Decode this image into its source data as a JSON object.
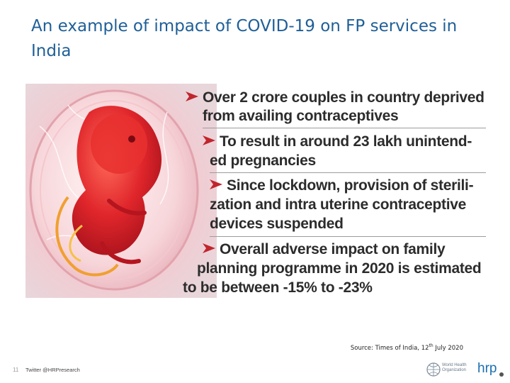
{
  "title": "An example of impact of COVID-19 on FP services in India",
  "figure": {
    "points": [
      {
        "line1": "Over 2 crore couples in country deprived",
        "line2": "from availing contraceptives"
      },
      {
        "line1": "To result in around 23 lakh unintend-",
        "line2": "ed pregnancies"
      },
      {
        "line1": "Since lockdown, provision of sterili-",
        "line2": "zation and intra uterine contraceptive",
        "line3": "devices suspended"
      },
      {
        "line1": "Overall adverse impact on family",
        "line2": "planning programme in 2020 is estimated",
        "line3": "to be between -15% to -23%"
      }
    ]
  },
  "source": {
    "prefix": "Source: Times of India, 12",
    "sup": "th",
    "suffix": " July 2020"
  },
  "footer": {
    "page_number": "11",
    "twitter": "Twitter @HRPresearch",
    "who_line1": "World Health",
    "who_line2": "Organization",
    "hrp": "hrp"
  },
  "colors": {
    "title": "#1f5f97",
    "arrow": "#c0262d",
    "embryo": "#d8232a"
  }
}
